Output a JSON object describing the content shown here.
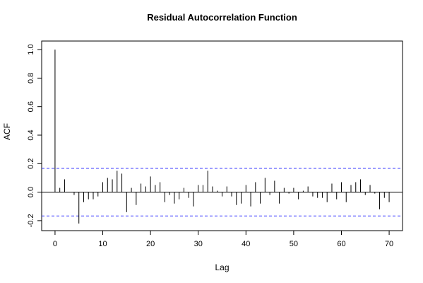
{
  "chart_data": {
    "type": "bar",
    "title": "Residual Autocorrelation Function",
    "xlabel": "Lag",
    "ylabel": "ACF",
    "xlim": [
      -2.8,
      72.8
    ],
    "ylim": [
      -0.27,
      1.06
    ],
    "x_ticks": [
      0,
      10,
      20,
      30,
      40,
      50,
      60,
      70
    ],
    "y_ticks": [
      -0.2,
      0.0,
      0.2,
      0.4,
      0.6,
      0.8,
      1.0
    ],
    "confidence_band": 0.167,
    "confidence_color": "#3b3bff",
    "x": [
      0,
      1,
      2,
      3,
      4,
      5,
      6,
      7,
      8,
      9,
      10,
      11,
      12,
      13,
      14,
      15,
      16,
      17,
      18,
      19,
      20,
      21,
      22,
      23,
      24,
      25,
      26,
      27,
      28,
      29,
      30,
      31,
      32,
      33,
      34,
      35,
      36,
      37,
      38,
      39,
      40,
      41,
      42,
      43,
      44,
      45,
      46,
      47,
      48,
      49,
      50,
      51,
      52,
      53,
      54,
      55,
      56,
      57,
      58,
      59,
      60,
      61,
      62,
      63,
      64,
      65,
      66,
      67,
      68,
      69,
      70
    ],
    "values": [
      1.0,
      0.03,
      0.09,
      0.0,
      -0.02,
      -0.22,
      -0.07,
      -0.05,
      -0.05,
      -0.03,
      0.07,
      0.1,
      0.09,
      0.15,
      0.13,
      -0.14,
      0.03,
      -0.09,
      0.06,
      0.04,
      0.11,
      0.05,
      0.07,
      -0.07,
      -0.02,
      -0.08,
      -0.05,
      0.03,
      -0.04,
      -0.1,
      0.05,
      0.05,
      0.15,
      0.04,
      0.01,
      -0.03,
      0.04,
      -0.03,
      -0.09,
      -0.08,
      0.05,
      -0.1,
      0.07,
      -0.08,
      0.1,
      -0.02,
      0.08,
      -0.08,
      0.03,
      -0.01,
      0.03,
      -0.05,
      0.01,
      0.04,
      -0.03,
      -0.04,
      -0.04,
      -0.07,
      0.06,
      -0.05,
      0.07,
      -0.07,
      0.05,
      0.07,
      0.09,
      -0.02,
      0.05,
      -0.01,
      -0.12,
      -0.04,
      -0.07
    ]
  }
}
